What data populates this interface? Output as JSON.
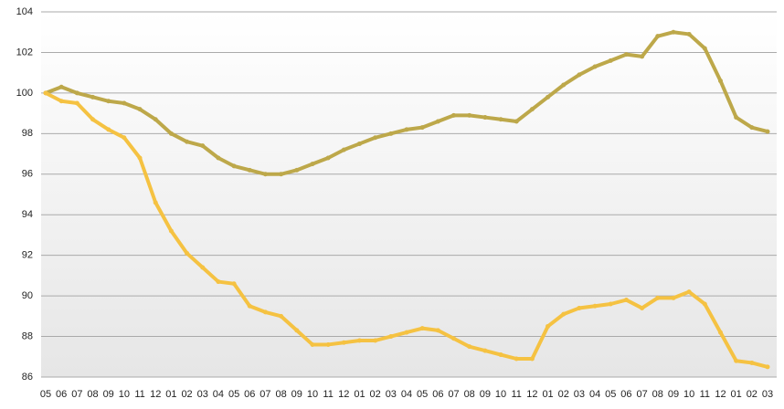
{
  "chart_data": {
    "type": "line",
    "categories": [
      "05",
      "06",
      "07",
      "08",
      "09",
      "10",
      "11",
      "12",
      "01",
      "02",
      "03",
      "04",
      "05",
      "06",
      "07",
      "08",
      "09",
      "10",
      "11",
      "12",
      "01",
      "02",
      "03",
      "04",
      "05",
      "06",
      "07",
      "08",
      "09",
      "10",
      "11",
      "12",
      "01",
      "02",
      "03",
      "04",
      "05",
      "06",
      "07",
      "08",
      "09",
      "10",
      "11",
      "12",
      "01",
      "02",
      "03"
    ],
    "series": [
      {
        "color": "#bda84a",
        "values": [
          100,
          100.3,
          100.0,
          99.8,
          99.6,
          99.5,
          99.2,
          98.7,
          98.0,
          97.6,
          97.4,
          96.8,
          96.4,
          96.2,
          96.0,
          96.0,
          96.2,
          96.5,
          96.8,
          97.2,
          97.5,
          97.8,
          98.0,
          98.2,
          98.3,
          98.6,
          98.9,
          98.9,
          98.8,
          98.7,
          98.6,
          99.2,
          99.8,
          100.4,
          100.9,
          101.3,
          101.6,
          101.9,
          101.8,
          102.8,
          103.0,
          102.9,
          102.2,
          100.6,
          98.8,
          98.3,
          98.1
        ]
      },
      {
        "color": "#f5c242",
        "values": [
          100,
          99.6,
          99.5,
          98.7,
          98.2,
          97.8,
          96.8,
          94.6,
          93.2,
          92.1,
          91.4,
          90.7,
          90.6,
          89.5,
          89.2,
          89.0,
          88.3,
          87.6,
          87.6,
          87.7,
          87.8,
          87.8,
          88.0,
          88.2,
          88.4,
          88.3,
          87.9,
          87.5,
          87.3,
          87.1,
          86.9,
          86.9,
          88.5,
          89.1,
          89.4,
          89.5,
          89.6,
          89.8,
          89.4,
          89.9,
          89.9,
          90.2,
          89.6,
          88.2,
          86.8,
          86.7,
          86.5
        ]
      }
    ],
    "ylim": [
      86,
      104
    ],
    "yticks": [
      86,
      88,
      90,
      92,
      94,
      96,
      98,
      100,
      102,
      104
    ],
    "grid": true
  }
}
